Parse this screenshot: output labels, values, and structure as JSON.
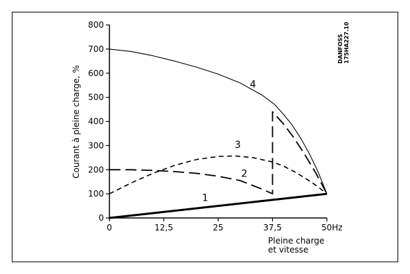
{
  "chart_data": {
    "type": "line",
    "ylabel": "Courant à pleine charge, %",
    "xlabel_lines": [
      "Pleine charge",
      "et vitesse"
    ],
    "x_ticks": [
      "0",
      "12,5",
      "25",
      "37,5",
      "50Hz"
    ],
    "y_ticks": [
      "0",
      "100",
      "200",
      "300",
      "400",
      "500",
      "600",
      "700",
      "800"
    ],
    "xlim": [
      0,
      50
    ],
    "ylim": [
      0,
      800
    ],
    "grid": false,
    "series": [
      {
        "name": "1",
        "style": "thick-solid",
        "x": [
          0,
          50
        ],
        "y": [
          0,
          100
        ]
      },
      {
        "name": "2",
        "style": "long-dash",
        "x": [
          0,
          5,
          10,
          15,
          20,
          25,
          30,
          35,
          37.5,
          37.5,
          40,
          42.5,
          45,
          47.5,
          50
        ],
        "y": [
          200,
          200,
          197,
          192,
          185,
          173,
          155,
          120,
          100,
          440,
          390,
          330,
          260,
          185,
          100
        ]
      },
      {
        "name": "3",
        "style": "short-dash",
        "x": [
          0,
          5,
          10,
          15,
          20,
          25,
          29,
          33,
          37.5,
          40,
          42.5,
          45,
          47.5,
          50
        ],
        "y": [
          100,
          145,
          185,
          218,
          242,
          255,
          257,
          250,
          232,
          215,
          192,
          165,
          135,
          100
        ]
      },
      {
        "name": "4",
        "style": "thin-solid",
        "x": [
          0,
          5,
          10,
          15,
          20,
          25,
          30,
          35,
          38,
          40,
          42,
          44,
          46,
          48,
          50
        ],
        "y": [
          700,
          690,
          672,
          650,
          625,
          596,
          560,
          510,
          470,
          430,
          385,
          330,
          265,
          190,
          100
        ]
      }
    ],
    "curve_labels": [
      {
        "text": "1",
        "x": 22,
        "y": 70
      },
      {
        "text": "2",
        "x": 31,
        "y": 170
      },
      {
        "text": "3",
        "x": 29.5,
        "y": 290
      },
      {
        "text": "4",
        "x": 33,
        "y": 540
      }
    ]
  },
  "watermark_lines": [
    "DANFOSS",
    "175HA227.10"
  ]
}
